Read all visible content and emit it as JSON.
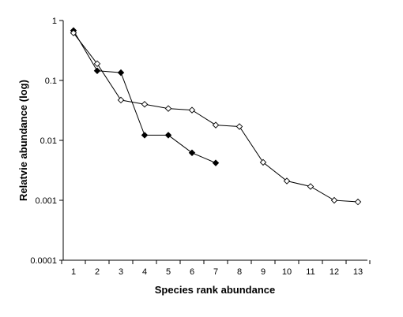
{
  "chart_data": {
    "type": "line",
    "title": "",
    "xlabel": "Species rank abundance",
    "ylabel": "Relatvie abundance (log)",
    "y_scale": "log",
    "ylim": [
      0.0001,
      1
    ],
    "xlim": [
      1,
      13
    ],
    "x_ticks": [
      "1",
      "2",
      "3",
      "4",
      "5",
      "6",
      "7",
      "8",
      "9",
      "10",
      "11",
      "12",
      "13"
    ],
    "y_ticks": [
      "1",
      "0.1",
      "0.01",
      "0.001",
      "0.0001"
    ],
    "y_tick_values": [
      1,
      0.1,
      0.01,
      0.001,
      0.0001
    ],
    "grid": false,
    "legend": "none",
    "series": [
      {
        "marker": "filled-diamond",
        "color": "#000000",
        "x": [
          1,
          2,
          3,
          4,
          5,
          6,
          7
        ],
        "y": [
          0.68,
          0.145,
          0.135,
          0.0122,
          0.0122,
          0.0062,
          0.0042
        ]
      },
      {
        "marker": "open-diamond",
        "color": "#000000",
        "x": [
          1,
          2,
          3,
          4,
          5,
          6,
          7,
          8,
          9,
          10,
          11,
          12,
          13
        ],
        "y": [
          0.62,
          0.19,
          0.047,
          0.04,
          0.034,
          0.032,
          0.018,
          0.017,
          0.0043,
          0.0021,
          0.0017,
          0.001,
          0.00094
        ]
      }
    ]
  }
}
